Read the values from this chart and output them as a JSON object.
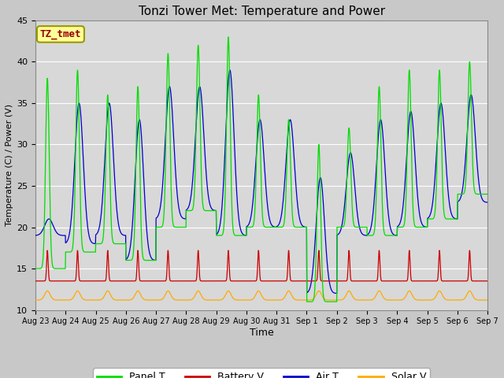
{
  "title": "Tonzi Tower Met: Temperature and Power",
  "xlabel": "Time",
  "ylabel": "Temperature (C) / Power (V)",
  "annotation": "TZ_tmet",
  "ylim": [
    10,
    45
  ],
  "yticks": [
    10,
    15,
    20,
    25,
    30,
    35,
    40,
    45
  ],
  "xtick_labels": [
    "Aug 23",
    "Aug 24",
    "Aug 25",
    "Aug 26",
    "Aug 27",
    "Aug 28",
    "Aug 29",
    "Aug 30",
    "Aug 31",
    "Sep 1",
    "Sep 2",
    "Sep 3",
    "Sep 4",
    "Sep 5",
    "Sep 6",
    "Sep 7"
  ],
  "legend_labels": [
    "Panel T",
    "Battery V",
    "Air T",
    "Solar V"
  ],
  "panel_color": "#00dd00",
  "battery_color": "#cc0000",
  "air_color": "#0000cc",
  "solar_color": "#ffaa00",
  "fig_bg_color": "#c8c8c8",
  "plot_bg": "#d8d8d8",
  "annotation_bg": "#ffff99",
  "annotation_text_color": "#990000",
  "annotation_border_color": "#999900",
  "grid_color": "#ffffff",
  "n_days": 15,
  "pts_per_day": 144,
  "panel_peaks": [
    38,
    39,
    36,
    37,
    41,
    42,
    43,
    36,
    33,
    30,
    32,
    37,
    39,
    39,
    40
  ],
  "panel_troughs": [
    15,
    17,
    18,
    16,
    20,
    22,
    19,
    20,
    20,
    11,
    20,
    19,
    20,
    21,
    24
  ],
  "air_peaks": [
    21,
    35,
    35,
    33,
    37,
    37,
    39,
    33,
    33,
    26,
    29,
    33,
    34,
    35,
    36
  ],
  "air_troughs": [
    19,
    18,
    19,
    16,
    21,
    22,
    19,
    20,
    20,
    12,
    19,
    19,
    20,
    21,
    23
  ],
  "batt_base": 13.5,
  "batt_peak": 17.2,
  "solar_base": 11.2,
  "solar_peak": 12.3
}
